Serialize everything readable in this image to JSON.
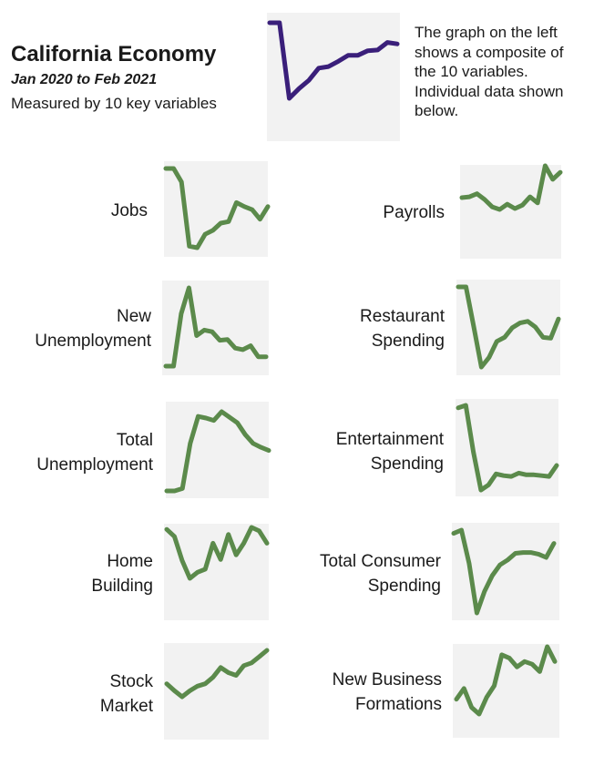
{
  "header": {
    "title": "California Economy",
    "subtitle": "Jan 2020 to Feb 2021",
    "caption": "Measured by 10 key variables",
    "note": "The graph on the left shows a composite of the 10 variables. Individual data shown below."
  },
  "colors": {
    "composite": "#3a1f7a",
    "variables": "#5b8a4b",
    "panel_bg": "#f2f2f2"
  },
  "chart_data": [
    {
      "type": "line",
      "name": "composite",
      "x": [
        "Jan 2020",
        "Feb 2020",
        "Mar 2020",
        "Apr 2020",
        "May 2020",
        "Jun 2020",
        "Jul 2020",
        "Aug 2020",
        "Sep 2020",
        "Oct 2020",
        "Nov 2020",
        "Dec 2020",
        "Jan 2021",
        "Feb 2021"
      ],
      "values": [
        1.0,
        1.0,
        0.0,
        0.13,
        0.24,
        0.4,
        0.42,
        0.49,
        0.57,
        0.57,
        0.63,
        0.64,
        0.74,
        0.72
      ]
    },
    {
      "type": "line",
      "name": "Jobs",
      "x": [
        "Jan 2020",
        "Feb 2020",
        "Mar 2020",
        "Apr 2020",
        "May 2020",
        "Jun 2020",
        "Jul 2020",
        "Aug 2020",
        "Sep 2020",
        "Oct 2020",
        "Nov 2020",
        "Dec 2020",
        "Jan 2021",
        "Feb 2021"
      ],
      "values": [
        1.0,
        1.0,
        0.83,
        0.02,
        0.0,
        0.17,
        0.22,
        0.31,
        0.33,
        0.57,
        0.52,
        0.48,
        0.36,
        0.52
      ]
    },
    {
      "type": "line",
      "name": "Payrolls",
      "x": [
        "Jan 2020",
        "Feb 2020",
        "Mar 2020",
        "Apr 2020",
        "May 2020",
        "Jun 2020",
        "Jul 2020",
        "Aug 2020",
        "Sep 2020",
        "Oct 2020",
        "Nov 2020",
        "Dec 2020",
        "Jan 2021",
        "Feb 2021"
      ],
      "values": [
        0.27,
        0.29,
        0.36,
        0.23,
        0.06,
        0.0,
        0.12,
        0.02,
        0.1,
        0.29,
        0.15,
        1.0,
        0.69,
        0.85
      ]
    },
    {
      "type": "line",
      "name": "New Unemployment",
      "x": [
        "Jan 2020",
        "Feb 2020",
        "Mar 2020",
        "Apr 2020",
        "May 2020",
        "Jun 2020",
        "Jul 2020",
        "Aug 2020",
        "Sep 2020",
        "Oct 2020",
        "Nov 2020",
        "Dec 2020",
        "Jan 2021",
        "Feb 2021"
      ],
      "values": [
        0.0,
        0.0,
        0.67,
        1.0,
        0.39,
        0.46,
        0.44,
        0.33,
        0.34,
        0.23,
        0.21,
        0.26,
        0.12,
        0.12
      ]
    },
    {
      "type": "line",
      "name": "Restaurant Spending",
      "x": [
        "Jan 2020",
        "Feb 2020",
        "Mar 2020",
        "Apr 2020",
        "May 2020",
        "Jun 2020",
        "Jul 2020",
        "Aug 2020",
        "Sep 2020",
        "Oct 2020",
        "Nov 2020",
        "Dec 2020",
        "Jan 2021",
        "Feb 2021"
      ],
      "values": [
        1.0,
        1.0,
        0.51,
        0.0,
        0.12,
        0.32,
        0.37,
        0.49,
        0.55,
        0.57,
        0.5,
        0.37,
        0.36,
        0.6
      ]
    },
    {
      "type": "line",
      "name": "Total Unemployment",
      "x": [
        "Jan 2020",
        "Feb 2020",
        "Mar 2020",
        "Apr 2020",
        "May 2020",
        "Jun 2020",
        "Jul 2020",
        "Aug 2020",
        "Sep 2020",
        "Oct 2020",
        "Nov 2020",
        "Dec 2020",
        "Jan 2021",
        "Feb 2021"
      ],
      "values": [
        0.0,
        0.0,
        0.03,
        0.6,
        0.94,
        0.92,
        0.89,
        1.0,
        0.93,
        0.86,
        0.71,
        0.6,
        0.55,
        0.51
      ]
    },
    {
      "type": "line",
      "name": "Entertainment Spending",
      "x": [
        "Jan 2020",
        "Feb 2020",
        "Mar 2020",
        "Apr 2020",
        "May 2020",
        "Jun 2020",
        "Jul 2020",
        "Aug 2020",
        "Sep 2020",
        "Oct 2020",
        "Nov 2020",
        "Dec 2020",
        "Jan 2021",
        "Feb 2021"
      ],
      "values": [
        0.97,
        1.0,
        0.45,
        0.0,
        0.06,
        0.19,
        0.17,
        0.16,
        0.2,
        0.18,
        0.18,
        0.17,
        0.16,
        0.29
      ]
    },
    {
      "type": "line",
      "name": "Home Building",
      "x": [
        "Jan 2020",
        "Feb 2020",
        "Mar 2020",
        "Apr 2020",
        "May 2020",
        "Jun 2020",
        "Jul 2020",
        "Aug 2020",
        "Sep 2020",
        "Oct 2020",
        "Nov 2020",
        "Dec 2020",
        "Jan 2021",
        "Feb 2021"
      ],
      "values": [
        0.96,
        0.82,
        0.35,
        0.0,
        0.12,
        0.18,
        0.69,
        0.37,
        0.86,
        0.46,
        0.69,
        1.0,
        0.93,
        0.69
      ]
    },
    {
      "type": "line",
      "name": "Total Consumer Spending",
      "x": [
        "Jan 2020",
        "Feb 2020",
        "Mar 2020",
        "Apr 2020",
        "May 2020",
        "Jun 2020",
        "Jul 2020",
        "Aug 2020",
        "Sep 2020",
        "Oct 2020",
        "Nov 2020",
        "Dec 2020",
        "Jan 2021",
        "Feb 2021"
      ],
      "values": [
        0.96,
        1.0,
        0.6,
        0.0,
        0.26,
        0.45,
        0.58,
        0.64,
        0.72,
        0.73,
        0.73,
        0.71,
        0.67,
        0.84
      ]
    },
    {
      "type": "line",
      "name": "Stock Market",
      "x": [
        "Jan 2020",
        "Feb 2020",
        "Mar 2020",
        "Apr 2020",
        "May 2020",
        "Jun 2020",
        "Jul 2020",
        "Aug 2020",
        "Sep 2020",
        "Oct 2020",
        "Nov 2020",
        "Dec 2020",
        "Jan 2021",
        "Feb 2021"
      ],
      "values": [
        0.28,
        0.13,
        0.0,
        0.13,
        0.23,
        0.28,
        0.42,
        0.63,
        0.52,
        0.46,
        0.67,
        0.73,
        0.86,
        1.0
      ]
    },
    {
      "type": "line",
      "name": "New Business Formations",
      "x": [
        "Jan 2020",
        "Feb 2020",
        "Mar 2020",
        "Apr 2020",
        "May 2020",
        "Jun 2020",
        "Jul 2020",
        "Aug 2020",
        "Sep 2020",
        "Oct 2020",
        "Nov 2020",
        "Dec 2020",
        "Jan 2021",
        "Feb 2021"
      ],
      "values": [
        0.22,
        0.38,
        0.1,
        0.0,
        0.25,
        0.42,
        0.88,
        0.83,
        0.7,
        0.78,
        0.74,
        0.63,
        1.0,
        0.78
      ]
    }
  ],
  "labels": {
    "jobs": "Jobs",
    "payrolls": "Payrolls",
    "new_unemployment": [
      "New",
      "Unemployment"
    ],
    "restaurant_spending": [
      "Restaurant",
      "Spending"
    ],
    "total_unemployment": [
      "Total",
      "Unemployment"
    ],
    "entertainment_spending": [
      "Entertainment",
      "Spending"
    ],
    "home_building": [
      "Home",
      "Building"
    ],
    "total_consumer_spending": [
      "Total Consumer",
      "Spending"
    ],
    "stock_market": [
      "Stock",
      "Market"
    ],
    "new_business_formations": [
      "New Business",
      "Formations"
    ]
  }
}
